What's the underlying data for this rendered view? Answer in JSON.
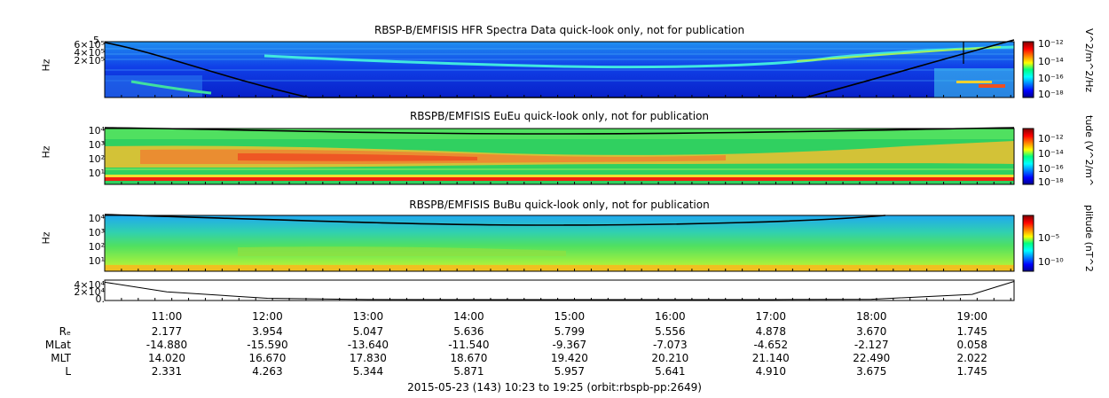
{
  "chart_data": [
    {
      "type": "heatmap",
      "title": "RBSP-B/EMFISIS  HFR Spectra Data quick-look only, not for publication",
      "ylabel": "Hz",
      "yticks": [
        "5",
        "6×10⁵",
        "4×10⁵",
        "2×10⁵"
      ],
      "colorbar_label": "V^2/m^2/Hz",
      "colorbar_ticks": [
        "10⁻¹²",
        "10⁻¹⁴",
        "10⁻¹⁶",
        "10⁻¹⁸"
      ],
      "colormap": "jet",
      "background_color": "#1030e0",
      "overlay_line": "black"
    },
    {
      "type": "heatmap",
      "title": "RBSPB/EMFISIS  EuEu quick-look only, not for publication",
      "ylabel": "Hz",
      "yticks": [
        "10⁴",
        "10³",
        "10²",
        "10¹"
      ],
      "colorbar_label": "tude (V^2/m^",
      "colorbar_ticks": [
        "10⁻¹²",
        "10⁻¹⁴",
        "10⁻¹⁶",
        "10⁻¹⁸"
      ],
      "colormap": "jet",
      "background_color": "#30d060",
      "overlay_line": "black"
    },
    {
      "type": "heatmap",
      "title": "RBSPB/EMFISIS  BuBu quick-look only, not for publication",
      "ylabel": "Hz",
      "yticks": [
        "10⁴",
        "10³",
        "10²",
        "10¹"
      ],
      "colorbar_label": "plitude (nT^2",
      "colorbar_ticks": [
        "10⁻⁵",
        "10⁻¹⁰"
      ],
      "colormap": "jet",
      "background_color": "#30c8a0",
      "overlay_line": "black"
    },
    {
      "type": "line",
      "yticks": [
        "4×10⁴",
        "2×10⁴",
        "0."
      ],
      "x": [
        "10:23",
        "11:00",
        "12:00",
        "13:00",
        "14:00",
        "15:00",
        "16:00",
        "17:00",
        "18:00",
        "19:00",
        "19:25"
      ],
      "values": [
        40000,
        18000,
        3000,
        300,
        80,
        0,
        0,
        0,
        800,
        12000,
        42000
      ]
    }
  ],
  "time_axis": {
    "labels": [
      "11:00",
      "12:00",
      "13:00",
      "14:00",
      "15:00",
      "16:00",
      "17:00",
      "18:00",
      "19:00"
    ]
  },
  "ephemeris": [
    {
      "label": "Rₑ",
      "values": [
        "2.177",
        "3.954",
        "5.047",
        "5.636",
        "5.799",
        "5.556",
        "4.878",
        "3.670",
        "1.745"
      ]
    },
    {
      "label": "MLat",
      "values": [
        "-14.880",
        "-15.590",
        "-13.640",
        "-11.540",
        "-9.367",
        "-7.073",
        "-4.652",
        "-2.127",
        "0.058"
      ]
    },
    {
      "label": "MLT",
      "values": [
        "14.020",
        "16.670",
        "17.830",
        "18.670",
        "19.420",
        "20.210",
        "21.140",
        "22.490",
        "2.022"
      ]
    },
    {
      "label": "L",
      "values": [
        "2.331",
        "4.263",
        "5.344",
        "5.871",
        "5.957",
        "5.641",
        "4.910",
        "3.675",
        "1.745"
      ]
    }
  ],
  "footer": "2015-05-23 (143) 10:23 to 19:25 (orbit:rbspb-pp:2649)"
}
